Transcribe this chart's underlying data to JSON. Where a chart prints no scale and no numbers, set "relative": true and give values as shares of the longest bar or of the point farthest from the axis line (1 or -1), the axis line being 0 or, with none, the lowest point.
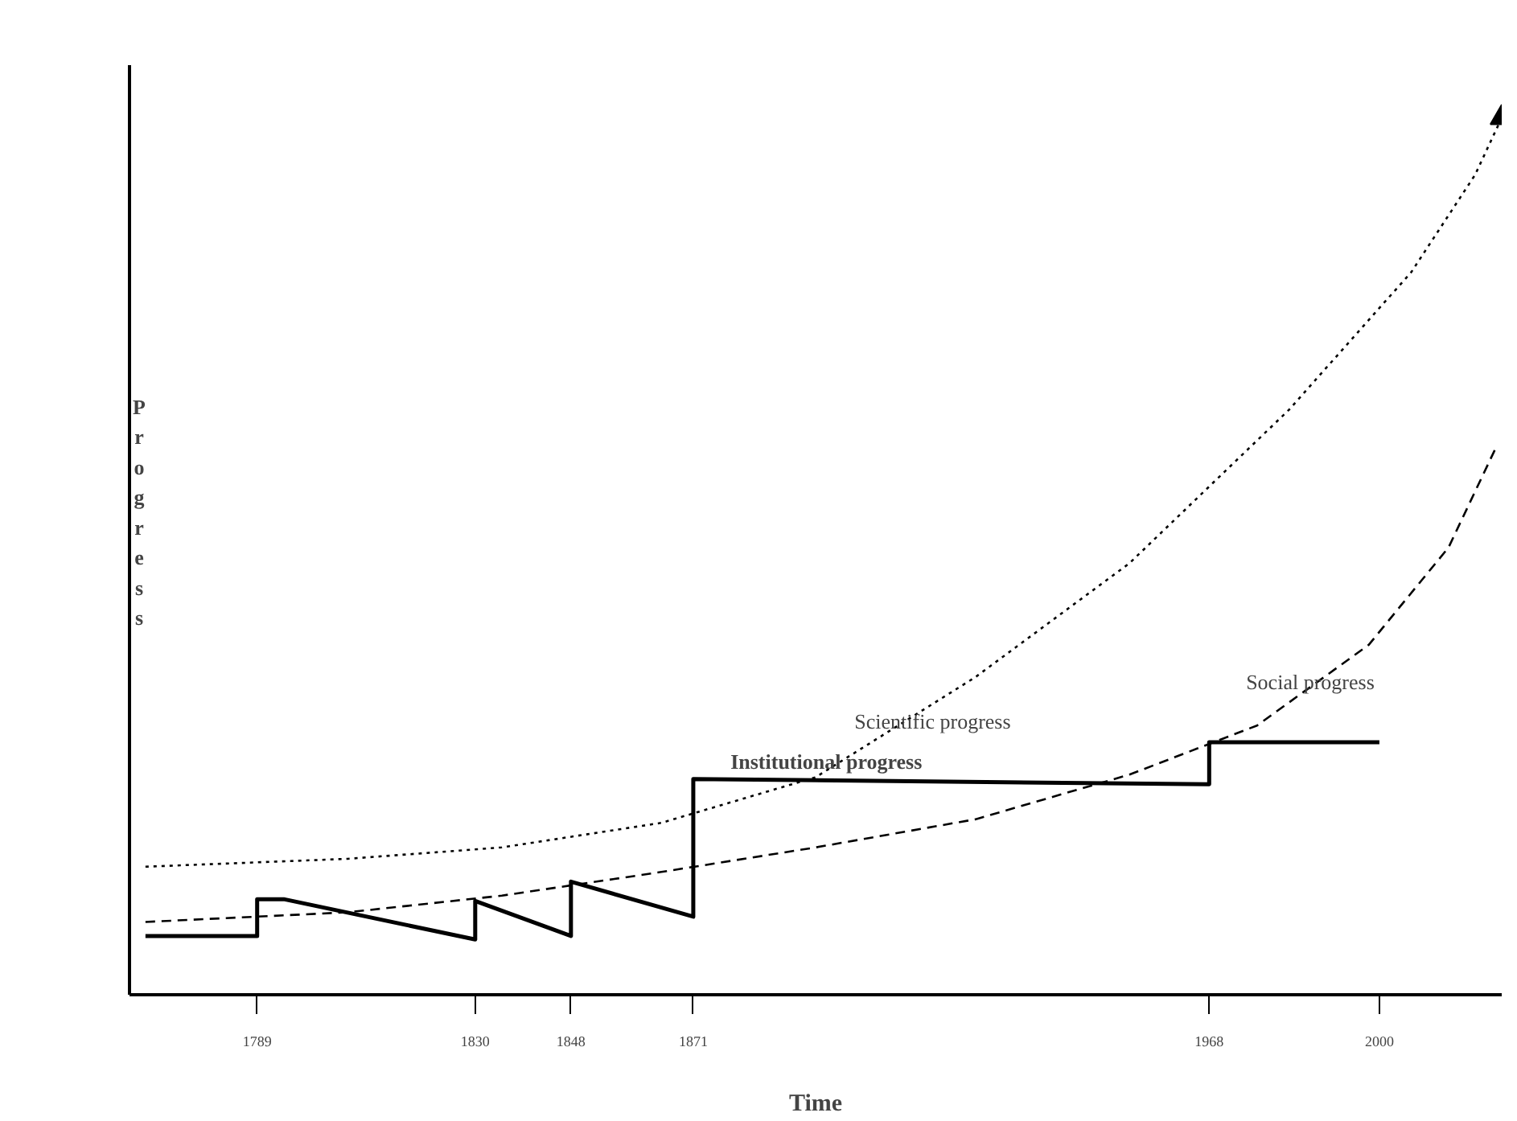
{
  "chart_data": {
    "type": "line",
    "relative": true,
    "xlabel": "Time",
    "ylabel": "Progress",
    "xlim": [
      1765,
      2023
    ],
    "xticks": [
      1789,
      1830,
      1848,
      1871,
      1968,
      2000
    ],
    "grid": false,
    "marker": "none",
    "series": [
      {
        "name": "Scientific progress",
        "color": "#000000",
        "line_style": "dotted",
        "x": [
          1768,
          1806,
          1835,
          1865,
          1894,
          1924,
          1953,
          1983,
          2006,
          2018,
          2023
        ],
        "values": [
          0.146,
          0.155,
          0.168,
          0.196,
          0.248,
          0.362,
          0.492,
          0.667,
          0.824,
          0.935,
          1
        ]
      },
      {
        "name": "Social progress",
        "color": "#000000",
        "line_style": "dashed",
        "x": [
          1768,
          1806,
          1835,
          1865,
          1894,
          1924,
          1953,
          1977,
          1998,
          2013,
          2022
        ],
        "values": [
          0.083,
          0.094,
          0.113,
          0.14,
          0.168,
          0.2,
          0.251,
          0.307,
          0.399,
          0.51,
          0.625
        ]
      },
      {
        "name": "Institutional progress",
        "color": "#000000",
        "line_style": "solid",
        "x": [
          1768,
          1789,
          1789,
          1794,
          1830,
          1830,
          1848,
          1848,
          1871,
          1871,
          1968,
          1968,
          2000
        ],
        "values": [
          0.067,
          0.067,
          0.109,
          0.109,
          0.063,
          0.107,
          0.067,
          0.129,
          0.089,
          0.246,
          0.24,
          0.288,
          0.288
        ]
      }
    ]
  }
}
